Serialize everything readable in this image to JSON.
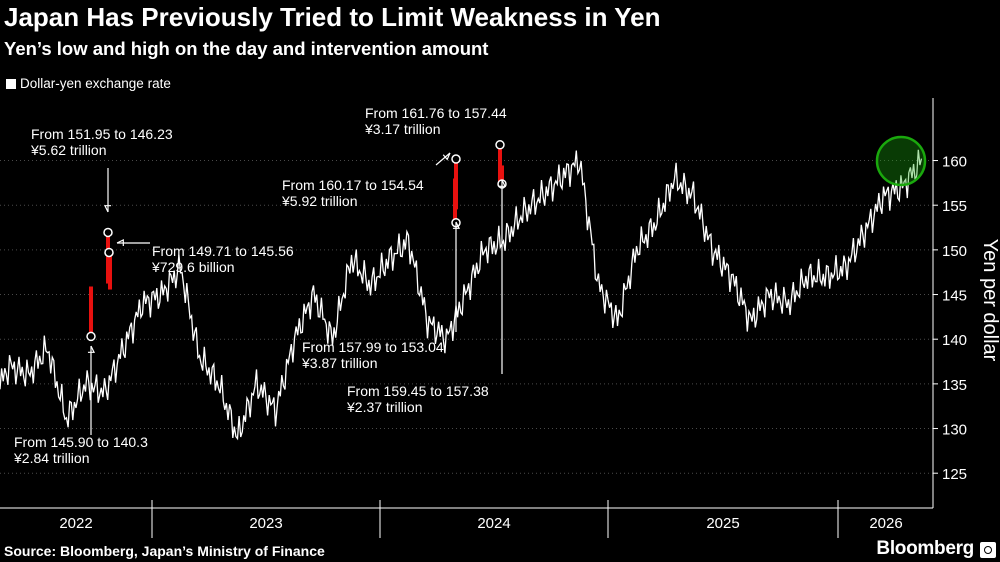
{
  "header": {
    "title": "Japan Has Previously Tried to Limit Weakness in Yen",
    "subtitle": "Yen’s low and high on the day and intervention amount"
  },
  "legend": {
    "label": "Dollar-yen exchange rate"
  },
  "footer": {
    "source": "Source: Bloomberg, Japan’s Ministry of Finance",
    "brand": "Bloomberg"
  },
  "colors": {
    "background": "#000000",
    "line": "#ffffff",
    "intervention": "#e8110f",
    "highlight": "#1aa80d"
  },
  "chart_data": {
    "type": "line",
    "ylabel": "Yen per dollar",
    "ylim": [
      122,
      167
    ],
    "yticks": [
      125,
      130,
      135,
      140,
      145,
      150,
      155,
      160
    ],
    "grid": true,
    "year_labels": [
      "2022",
      "2023",
      "2024",
      "2025",
      "2026"
    ],
    "series": [
      {
        "name": "Dollar-yen exchange rate",
        "x": [
          "2021-10",
          "2021-11",
          "2021-12",
          "2022-01",
          "2022-02",
          "2022-03",
          "2022-04",
          "2022-05",
          "2022-06",
          "2022-07",
          "2022-08",
          "2022-09",
          "2022-10",
          "2022-11",
          "2022-12",
          "2023-01",
          "2023-02",
          "2023-03",
          "2023-04",
          "2023-05",
          "2023-06",
          "2023-07",
          "2023-08",
          "2023-09",
          "2023-10",
          "2023-11",
          "2023-12",
          "2024-01",
          "2024-02",
          "2024-03",
          "2024-04",
          "2024-05",
          "2024-06",
          "2024-07",
          "2024-08",
          "2024-09",
          "2024-10",
          "2024-11",
          "2024-12",
          "2025-01",
          "2025-02",
          "2025-03",
          "2025-04",
          "2025-05",
          "2025-06",
          "2025-07",
          "2025-08",
          "2025-09",
          "2025-10",
          "2025-11",
          "2025-12",
          "2026-01"
        ],
        "y": [
          130,
          127,
          133,
          137,
          136,
          139,
          131,
          135,
          134,
          139,
          144,
          145,
          148,
          138,
          135,
          129,
          135,
          132,
          140,
          145,
          140,
          149,
          146,
          149,
          151,
          142,
          140,
          145,
          150,
          151,
          154,
          156,
          158,
          160,
          146,
          142,
          150,
          153,
          158,
          156,
          150,
          147,
          142,
          145,
          144,
          147,
          147,
          148,
          152,
          156,
          157,
          160
        ]
      }
    ],
    "interventions": [
      {
        "date": "2022-09",
        "from": 145.9,
        "to": 140.31,
        "amount": "¥2.84 trillion",
        "label": "From 145.90 to 140.3"
      },
      {
        "date": "2022-10a",
        "from": 151.95,
        "to": 146.23,
        "amount": "¥5.62 trillion",
        "label": "From 151.95 to 146.23"
      },
      {
        "date": "2022-10b",
        "from": 149.71,
        "to": 145.56,
        "amount": "¥729.6 billion",
        "label": "From 149.71 to 145.56"
      },
      {
        "date": "2024-04",
        "from": 160.17,
        "to": 154.54,
        "amount": "¥5.92 trillion",
        "label": "From 160.17 to 154.54"
      },
      {
        "date": "2024-05",
        "from": 157.99,
        "to": 153.04,
        "amount": "¥3.87 trillion",
        "label": "From 157.99 to 153.04"
      },
      {
        "date": "2024-07a",
        "from": 161.76,
        "to": 157.44,
        "amount": "¥3.17 trillion",
        "label": "From 161.76 to 157.44"
      },
      {
        "date": "2024-07b",
        "from": 159.45,
        "to": 157.38,
        "amount": "¥2.37 trillion",
        "label": "From 159.45 to 157.38"
      }
    ]
  }
}
